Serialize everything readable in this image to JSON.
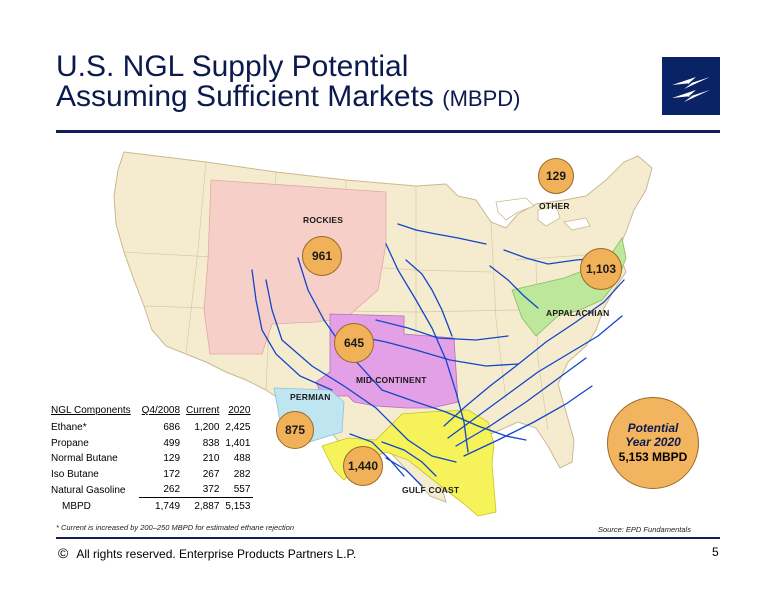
{
  "title": {
    "line1": "U.S. NGL Supply Potential",
    "line2": "Assuming Sufficient Markets",
    "unit": "(MBPD)"
  },
  "regions": [
    {
      "label": "ROCKIES",
      "value": "961"
    },
    {
      "label": "OTHER",
      "value": "129"
    },
    {
      "label": "APPALACHIAN",
      "value": "1,103"
    },
    {
      "label": "MID-CONTINENT",
      "value": "645"
    },
    {
      "label": "PERMIAN",
      "value": "875"
    },
    {
      "label": "GULF COAST",
      "value": "1,440"
    }
  ],
  "potential": {
    "line1": "Potential",
    "line2": "Year 2020",
    "value": "5,153",
    "unit": "MBPD"
  },
  "table": {
    "headers": [
      "NGL Components",
      "Q4/2008",
      "Current",
      "2020"
    ],
    "rows": [
      [
        "Ethane*",
        "686",
        "1,200",
        "2,425"
      ],
      [
        "Propane",
        "499",
        "838",
        "1,401"
      ],
      [
        "Normal Butane",
        "129",
        "210",
        "488"
      ],
      [
        "Iso Butane",
        "172",
        "267",
        "282"
      ],
      [
        "Natural Gasoline",
        "262",
        "372",
        "557"
      ]
    ],
    "total": [
      "MBPD",
      "1,749",
      "2,887",
      "5,153"
    ]
  },
  "footnote": "* Current is increased by 200–250 MBPD for estimated ethane rejection",
  "source": "Source:  EPD Fundamentals",
  "footer": {
    "copyright_symbol": "©",
    "copyright": "All rights reserved. Enterprise Products Partners L.P.",
    "page_number": "5"
  },
  "colors": {
    "title": "#0b1a4e",
    "rule": "#141e5a",
    "logo_bg": "#0a2266",
    "bubble": "#f0b159",
    "rockies": "#f6cfc9",
    "mid_continent": "#e3a0e6",
    "permian": "#bfe6f0",
    "gulf_coast": "#f6f25a",
    "appalachian": "#bde79a",
    "land": "#f5ecd0",
    "pipeline": "#1146c8"
  },
  "icons": {
    "logo": "lightning-bolt-logo-icon",
    "copyright": "copyright-icon"
  }
}
